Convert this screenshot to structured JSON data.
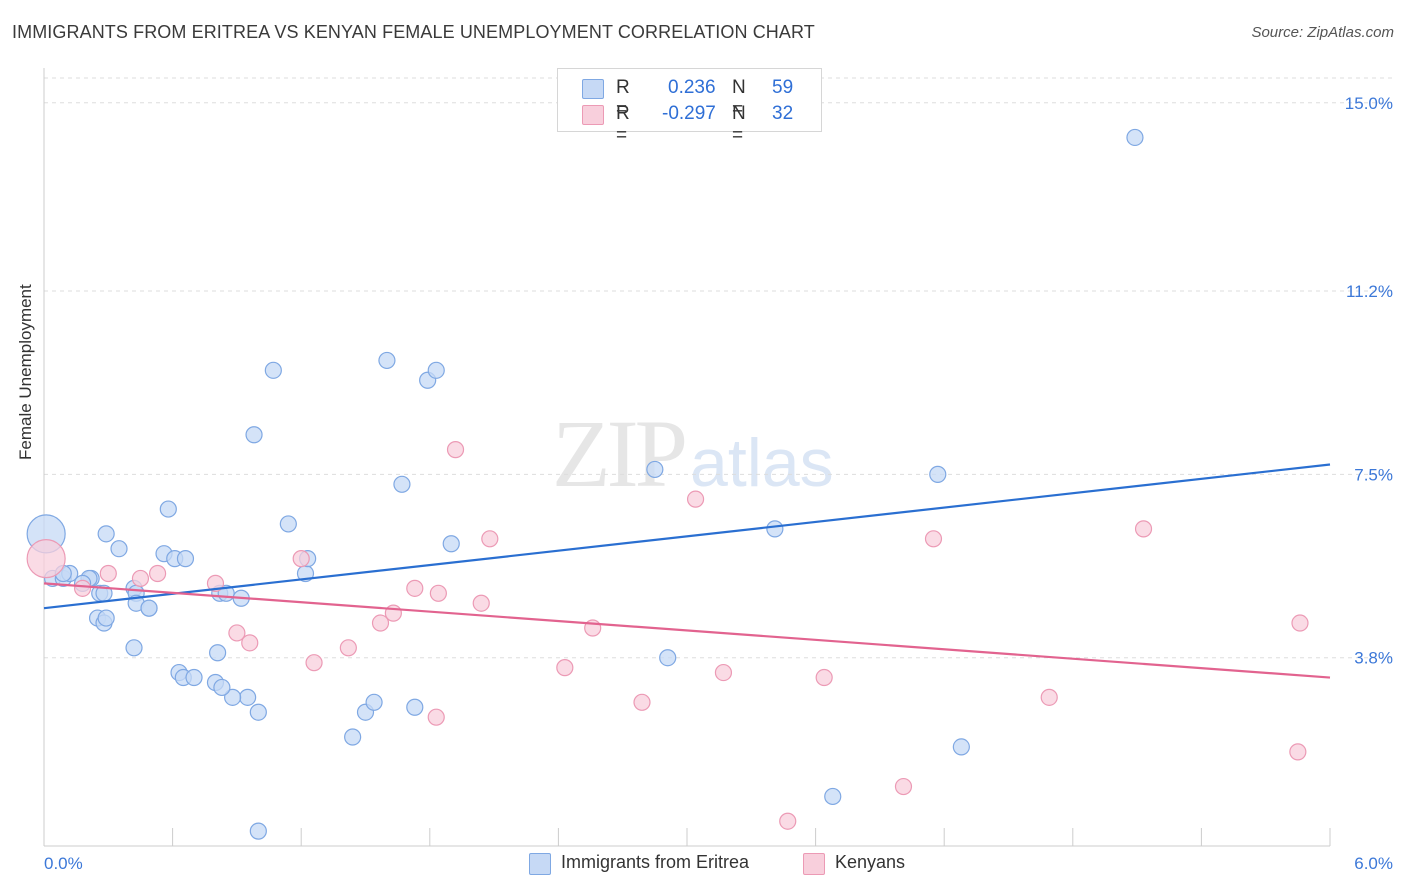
{
  "header": {
    "title": "IMMIGRANTS FROM ERITREA VS KENYAN FEMALE UNEMPLOYMENT CORRELATION CHART",
    "source": "Source: ZipAtlas.com"
  },
  "legend": {
    "rows": [
      {
        "r_label": "R =",
        "r_value": "0.236",
        "n_label": "N =",
        "n_value": "59"
      },
      {
        "r_label": "R =",
        "r_value": "-0.297",
        "n_label": "N =",
        "n_value": "32"
      }
    ],
    "bottom": [
      "Immigrants from Eritrea",
      "Kenyans"
    ]
  },
  "watermark": {
    "zip": "ZIP",
    "atlas": "atlas"
  },
  "colors": {
    "blue_fill": "#c6d9f5",
    "blue_stroke": "#7fa8e3",
    "blue_line": "#2a6fd1",
    "pink_fill": "#f8cfdc",
    "pink_stroke": "#ec9ab5",
    "pink_line": "#e2638f",
    "tick_label": "#3c78d8",
    "grid": "#dddddd"
  },
  "chart_data": {
    "type": "scatter",
    "title": "IMMIGRANTS FROM ERITREA VS KENYAN FEMALE UNEMPLOYMENT CORRELATION CHART",
    "xlabel": "",
    "ylabel": "Female Unemployment",
    "xlim": [
      0,
      6
    ],
    "ylim": [
      0,
      15.5
    ],
    "x_tick_labels": [
      "0.0%",
      "6.0%"
    ],
    "y_ticks": [
      3.8,
      7.5,
      11.2,
      15.0
    ],
    "y_tick_labels": [
      "3.8%",
      "7.5%",
      "11.2%",
      "15.0%"
    ],
    "grid": true,
    "series": [
      {
        "name": "Immigrants from Eritrea",
        "color": "#7fa8e3",
        "trend": {
          "x": [
            0,
            6
          ],
          "y": [
            4.8,
            7.7
          ]
        },
        "points": [
          {
            "x": 0.01,
            "y": 6.3,
            "big": true
          },
          {
            "x": 0.04,
            "y": 5.4
          },
          {
            "x": 0.09,
            "y": 5.4
          },
          {
            "x": 0.12,
            "y": 5.5
          },
          {
            "x": 0.09,
            "y": 5.5
          },
          {
            "x": 0.22,
            "y": 5.4
          },
          {
            "x": 0.21,
            "y": 5.4
          },
          {
            "x": 0.18,
            "y": 5.3
          },
          {
            "x": 0.26,
            "y": 5.1
          },
          {
            "x": 0.28,
            "y": 5.1
          },
          {
            "x": 0.42,
            "y": 5.2
          },
          {
            "x": 0.43,
            "y": 5.1
          },
          {
            "x": 0.43,
            "y": 4.9
          },
          {
            "x": 0.49,
            "y": 4.8
          },
          {
            "x": 0.49,
            "y": 4.8
          },
          {
            "x": 0.25,
            "y": 4.6
          },
          {
            "x": 0.28,
            "y": 4.5
          },
          {
            "x": 0.29,
            "y": 4.6
          },
          {
            "x": 0.29,
            "y": 6.3
          },
          {
            "x": 0.35,
            "y": 6.0
          },
          {
            "x": 0.42,
            "y": 4.0
          },
          {
            "x": 0.56,
            "y": 5.9
          },
          {
            "x": 0.58,
            "y": 6.8
          },
          {
            "x": 0.61,
            "y": 5.8
          },
          {
            "x": 0.66,
            "y": 5.8
          },
          {
            "x": 0.63,
            "y": 3.5
          },
          {
            "x": 0.65,
            "y": 3.4
          },
          {
            "x": 0.7,
            "y": 3.4
          },
          {
            "x": 0.8,
            "y": 3.3
          },
          {
            "x": 0.82,
            "y": 5.1
          },
          {
            "x": 0.85,
            "y": 5.1
          },
          {
            "x": 0.92,
            "y": 5.0
          },
          {
            "x": 0.98,
            "y": 8.3
          },
          {
            "x": 1.07,
            "y": 9.6
          },
          {
            "x": 1.14,
            "y": 6.5
          },
          {
            "x": 1.22,
            "y": 5.5
          },
          {
            "x": 1.23,
            "y": 5.8
          },
          {
            "x": 1.0,
            "y": 2.7
          },
          {
            "x": 0.95,
            "y": 3.0
          },
          {
            "x": 0.88,
            "y": 3.0
          },
          {
            "x": 0.83,
            "y": 3.2
          },
          {
            "x": 0.81,
            "y": 3.9
          },
          {
            "x": 1.0,
            "y": 0.3
          },
          {
            "x": 1.6,
            "y": 9.8
          },
          {
            "x": 1.67,
            "y": 7.3
          },
          {
            "x": 1.79,
            "y": 9.4
          },
          {
            "x": 1.83,
            "y": 9.6
          },
          {
            "x": 1.9,
            "y": 6.1
          },
          {
            "x": 1.44,
            "y": 2.2
          },
          {
            "x": 1.5,
            "y": 2.7
          },
          {
            "x": 1.54,
            "y": 2.9
          },
          {
            "x": 1.73,
            "y": 2.8
          },
          {
            "x": 2.85,
            "y": 7.6
          },
          {
            "x": 2.91,
            "y": 3.8
          },
          {
            "x": 3.41,
            "y": 6.4
          },
          {
            "x": 4.17,
            "y": 7.5
          },
          {
            "x": 4.28,
            "y": 2.0
          },
          {
            "x": 3.68,
            "y": 1.0
          },
          {
            "x": 5.09,
            "y": 14.3
          }
        ]
      },
      {
        "name": "Kenyans",
        "color": "#ec9ab5",
        "trend": {
          "x": [
            0,
            6
          ],
          "y": [
            5.3,
            3.4
          ]
        },
        "points": [
          {
            "x": 0.01,
            "y": 5.8,
            "big": true
          },
          {
            "x": 0.18,
            "y": 5.2
          },
          {
            "x": 0.3,
            "y": 5.5
          },
          {
            "x": 0.45,
            "y": 5.4
          },
          {
            "x": 0.8,
            "y": 5.3
          },
          {
            "x": 0.9,
            "y": 4.3
          },
          {
            "x": 0.96,
            "y": 4.1
          },
          {
            "x": 1.2,
            "y": 5.8
          },
          {
            "x": 1.26,
            "y": 3.7
          },
          {
            "x": 1.42,
            "y": 4.0
          },
          {
            "x": 1.57,
            "y": 4.5
          },
          {
            "x": 1.63,
            "y": 4.7
          },
          {
            "x": 1.73,
            "y": 5.2
          },
          {
            "x": 1.84,
            "y": 5.1
          },
          {
            "x": 2.04,
            "y": 4.9
          },
          {
            "x": 1.92,
            "y": 8.0
          },
          {
            "x": 2.08,
            "y": 6.2
          },
          {
            "x": 2.43,
            "y": 3.6
          },
          {
            "x": 2.56,
            "y": 4.4
          },
          {
            "x": 2.79,
            "y": 2.9
          },
          {
            "x": 3.04,
            "y": 7.0
          },
          {
            "x": 3.17,
            "y": 3.5
          },
          {
            "x": 3.47,
            "y": 0.5
          },
          {
            "x": 3.64,
            "y": 3.4
          },
          {
            "x": 4.15,
            "y": 6.2
          },
          {
            "x": 4.01,
            "y": 1.2
          },
          {
            "x": 4.69,
            "y": 3.0
          },
          {
            "x": 5.13,
            "y": 6.4
          },
          {
            "x": 5.85,
            "y": 1.9
          },
          {
            "x": 5.86,
            "y": 4.5
          },
          {
            "x": 1.83,
            "y": 2.6
          },
          {
            "x": 0.53,
            "y": 5.5
          }
        ]
      }
    ]
  }
}
